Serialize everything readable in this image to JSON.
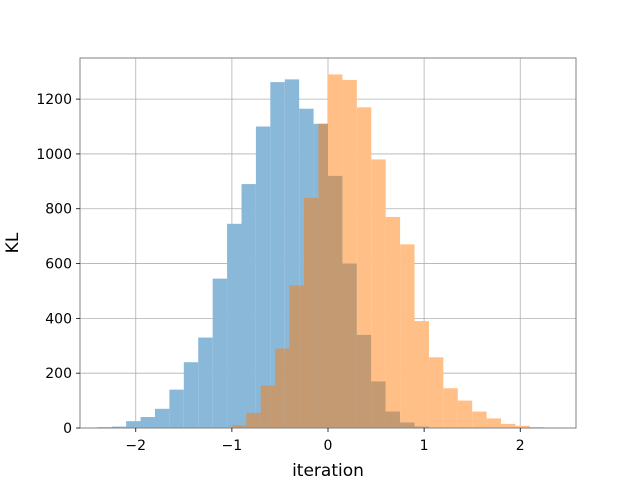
{
  "chart_data": {
    "type": "histogram",
    "title": "",
    "xlabel": "iteration",
    "ylabel": "KL",
    "xlim": [
      -2.58,
      2.58
    ],
    "ylim": [
      0,
      1350
    ],
    "grid": true,
    "xticks": [
      -2,
      -1,
      0,
      1,
      2
    ],
    "xtick_labels": [
      "−2",
      "−1",
      "0",
      "1",
      "2"
    ],
    "yticks": [
      0,
      200,
      400,
      600,
      800,
      1000,
      1200
    ],
    "ytick_labels": [
      "0",
      "200",
      "400",
      "600",
      "800",
      "1000",
      "1200"
    ],
    "overlap_color": "#c49a72",
    "series": [
      {
        "color": "#8ab8d9",
        "opacity": 1,
        "bin_width": 0.15,
        "bins": [
          {
            "x0": -2.4,
            "value": 3
          },
          {
            "x0": -2.25,
            "value": 5
          },
          {
            "x0": -2.1,
            "value": 25
          },
          {
            "x0": -1.95,
            "value": 40
          },
          {
            "x0": -1.8,
            "value": 70
          },
          {
            "x0": -1.65,
            "value": 140
          },
          {
            "x0": -1.5,
            "value": 240
          },
          {
            "x0": -1.35,
            "value": 330
          },
          {
            "x0": -1.2,
            "value": 545
          },
          {
            "x0": -1.05,
            "value": 745
          },
          {
            "x0": -0.9,
            "value": 890
          },
          {
            "x0": -0.75,
            "value": 1100
          },
          {
            "x0": -0.6,
            "value": 1262
          },
          {
            "x0": -0.45,
            "value": 1272
          },
          {
            "x0": -0.3,
            "value": 1165
          },
          {
            "x0": -0.15,
            "value": 1110
          },
          {
            "x0": 0.0,
            "value": 920
          },
          {
            "x0": 0.15,
            "value": 600
          },
          {
            "x0": 0.3,
            "value": 340
          },
          {
            "x0": 0.45,
            "value": 170
          },
          {
            "x0": 0.6,
            "value": 60
          },
          {
            "x0": 0.75,
            "value": 20
          },
          {
            "x0": 0.9,
            "value": 5
          }
        ]
      },
      {
        "color": "#ffbf86",
        "opacity": 1,
        "bin_width": 0.15,
        "bins": [
          {
            "x0": -1.0,
            "value": 10
          },
          {
            "x0": -0.85,
            "value": 55
          },
          {
            "x0": -0.7,
            "value": 155
          },
          {
            "x0": -0.55,
            "value": 290
          },
          {
            "x0": -0.4,
            "value": 520
          },
          {
            "x0": -0.25,
            "value": 840
          },
          {
            "x0": -0.1,
            "value": 1110
          },
          {
            "x0": 0.0,
            "value": 1290
          },
          {
            "x0": 0.15,
            "value": 1270
          },
          {
            "x0": 0.3,
            "value": 1170
          },
          {
            "x0": 0.45,
            "value": 980
          },
          {
            "x0": 0.6,
            "value": 770
          },
          {
            "x0": 0.75,
            "value": 670
          },
          {
            "x0": 0.9,
            "value": 390
          },
          {
            "x0": 1.05,
            "value": 258
          },
          {
            "x0": 1.2,
            "value": 145
          },
          {
            "x0": 1.35,
            "value": 100
          },
          {
            "x0": 1.5,
            "value": 60
          },
          {
            "x0": 1.65,
            "value": 35
          },
          {
            "x0": 1.8,
            "value": 15
          },
          {
            "x0": 1.95,
            "value": 8
          },
          {
            "x0": 2.1,
            "value": 3
          }
        ]
      }
    ]
  }
}
